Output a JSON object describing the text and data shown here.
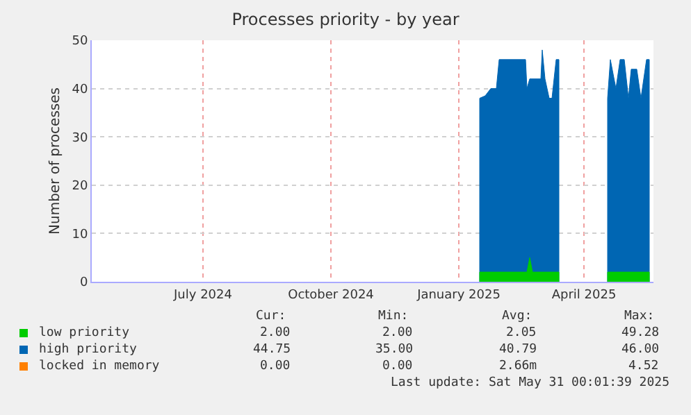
{
  "chart_data": {
    "type": "area",
    "stacked": true,
    "title": "Processes priority - by year",
    "ylabel": "Number of processes",
    "x": [
      "2025-01-16",
      "2025-01-20",
      "2025-01-24",
      "2025-01-28",
      "2025-01-30",
      "2025-02-18",
      "2025-02-19",
      "2025-02-21",
      "2025-02-23",
      "2025-03-01",
      "2025-03-02",
      "2025-03-04",
      "2025-03-07",
      "2025-03-09",
      "2025-03-12",
      "2025-03-14",
      "2025-04-01",
      "2025-04-18",
      "2025-04-20",
      "2025-04-24",
      "2025-04-27",
      "2025-04-30",
      "2025-05-03",
      "2025-05-05",
      "2025-05-09",
      "2025-05-12",
      "2025-05-16",
      "2025-05-18"
    ],
    "series": [
      {
        "name": "low priority",
        "color": "#00cc00",
        "values": [
          2,
          2,
          2,
          2,
          2,
          2,
          2,
          5,
          2,
          2,
          2,
          2,
          2,
          2,
          2,
          2,
          null,
          2,
          2,
          2,
          2,
          2,
          2,
          2,
          2,
          2,
          2,
          2
        ]
      },
      {
        "name": "high priority",
        "color": "#0066b3",
        "values": [
          36,
          36.5,
          38,
          38,
          44,
          44,
          38,
          37,
          40,
          40,
          46,
          40,
          36,
          36,
          44,
          44,
          null,
          36,
          44,
          38,
          44,
          44,
          36,
          42,
          42,
          36,
          44,
          44
        ]
      },
      {
        "name": "locked in memory",
        "color": "#ff8000",
        "values": [
          null,
          null,
          null,
          null,
          null,
          null,
          null,
          null,
          null,
          null,
          null,
          null,
          null,
          null,
          null,
          null,
          null,
          null,
          null,
          null,
          null,
          null,
          null,
          null,
          null,
          null,
          null,
          null
        ]
      }
    ],
    "xlim": [
      "2024-04-12",
      "2025-05-21"
    ],
    "xticks": [
      {
        "value": "2024-07-01",
        "label": "July 2024"
      },
      {
        "value": "2024-10-01",
        "label": "October 2024"
      },
      {
        "value": "2025-01-01",
        "label": "January 2025"
      },
      {
        "value": "2025-04-01",
        "label": "April 2025"
      }
    ],
    "ylim": [
      0,
      50
    ],
    "yticks": [
      0,
      10,
      20,
      30,
      40,
      50
    ],
    "grid": true,
    "legend": "bottom",
    "annotations": [
      "Cur:",
      "Min:",
      "Avg:",
      "Max:",
      "2.00",
      "2.00",
      "2.05",
      "49.28",
      "44.75",
      "35.00",
      "40.79",
      "46.00",
      "0.00",
      "0.00",
      "2.66m",
      "4.52",
      "Last update: Sat May 31 00:01:39 2025"
    ]
  }
}
